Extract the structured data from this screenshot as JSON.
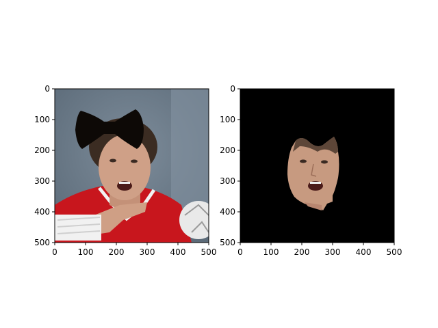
{
  "chart_data": [
    {
      "type": "image",
      "title": "",
      "xlabel": "",
      "ylabel": "",
      "xlim": [
        0,
        500
      ],
      "ylim": [
        500,
        0
      ],
      "xticks": [
        "0",
        "100",
        "200",
        "300",
        "400",
        "500"
      ],
      "yticks": [
        "0",
        "100",
        "200",
        "300",
        "400",
        "500"
      ],
      "content": "photo of handball player with black bow-shaped mask over forehead",
      "grid": false
    },
    {
      "type": "image",
      "title": "",
      "xlabel": "",
      "ylabel": "",
      "xlim": [
        0,
        500
      ],
      "ylim": [
        500,
        0
      ],
      "xticks": [
        "0",
        "100",
        "200",
        "300",
        "400",
        "500"
      ],
      "yticks": [
        "0",
        "100",
        "200",
        "300",
        "400",
        "500"
      ],
      "content": "segmented face region on black background",
      "grid": false
    }
  ],
  "colors": {
    "background_left": "#6f7f8f",
    "jersey": "#c8161d",
    "mask": "#0d0906",
    "skin": "#c99a80",
    "hair": "#3b2c22",
    "black_bg": "#000000"
  }
}
